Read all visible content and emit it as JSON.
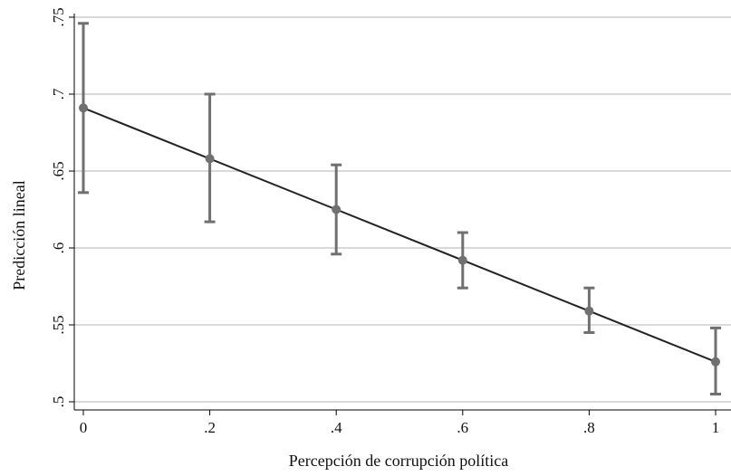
{
  "chart_data": {
    "type": "line",
    "title": "",
    "xlabel": "Percepción de corrupción política",
    "ylabel": "Predicción lineal",
    "xlim": [
      0,
      1
    ],
    "ylim": [
      0.5,
      0.75
    ],
    "x_ticks": [
      {
        "value": 0,
        "label": "0"
      },
      {
        "value": 0.2,
        "label": ".2"
      },
      {
        "value": 0.4,
        "label": ".4"
      },
      {
        "value": 0.6,
        "label": ".6"
      },
      {
        "value": 0.8,
        "label": ".8"
      },
      {
        "value": 1,
        "label": "1"
      }
    ],
    "y_ticks": [
      {
        "value": 0.5,
        "label": ".5"
      },
      {
        "value": 0.55,
        "label": ".55"
      },
      {
        "value": 0.6,
        "label": ".6"
      },
      {
        "value": 0.65,
        "label": ".65"
      },
      {
        "value": 0.7,
        "label": ".7"
      },
      {
        "value": 0.75,
        "label": ".75"
      }
    ],
    "grid": true,
    "series": [
      {
        "x": [
          0,
          0.2,
          0.4,
          0.6,
          0.8,
          1
        ],
        "y": [
          0.691,
          0.658,
          0.625,
          0.592,
          0.559,
          0.526
        ],
        "lower": [
          0.636,
          0.617,
          0.596,
          0.574,
          0.545,
          0.505
        ],
        "upper": [
          0.746,
          0.7,
          0.654,
          0.61,
          0.574,
          0.548
        ]
      }
    ],
    "colors": {
      "line": "#222222",
      "points": "#707070",
      "error_bars": "#707070",
      "grid": "#d9d9d9"
    }
  }
}
